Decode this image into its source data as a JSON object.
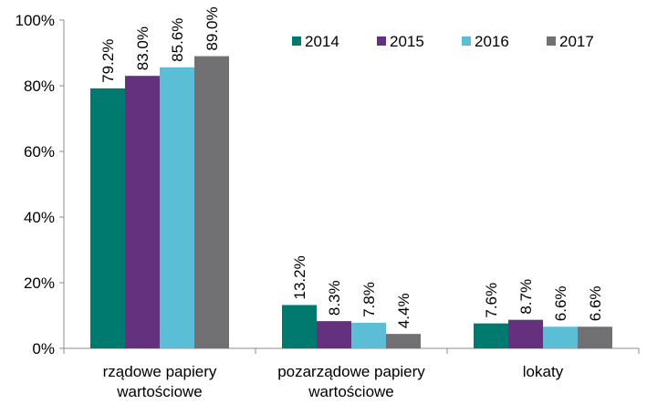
{
  "chart_data": {
    "type": "bar",
    "title": "",
    "xlabel": "",
    "ylabel": "",
    "ylim": [
      0,
      100
    ],
    "yticks": [
      "0%",
      "20%",
      "40%",
      "60%",
      "80%",
      "100%"
    ],
    "ytick_values": [
      0,
      20,
      40,
      60,
      80,
      100
    ],
    "categories": [
      [
        "rządowe papiery",
        "wartościowe"
      ],
      [
        "pozarządowe papiery",
        "wartościowe"
      ],
      [
        "lokaty"
      ]
    ],
    "series": [
      {
        "name": "2014",
        "color": "#007a6e",
        "values": [
          79.2,
          13.2,
          7.6
        ],
        "labels": [
          "79.2%",
          "13.2%",
          "7.6%"
        ]
      },
      {
        "name": "2015",
        "color": "#64317f",
        "values": [
          83.0,
          8.3,
          8.7
        ],
        "labels": [
          "83.0%",
          "8.3%",
          "8.7%"
        ]
      },
      {
        "name": "2016",
        "color": "#5bbdd6",
        "values": [
          85.6,
          7.8,
          6.6
        ],
        "labels": [
          "85.6%",
          "7.8%",
          "6.6%"
        ]
      },
      {
        "name": "2017",
        "color": "#717073",
        "values": [
          89.0,
          4.4,
          6.6
        ],
        "labels": [
          "89.0%",
          "4.4%",
          "6.6%"
        ]
      }
    ],
    "legend_position": "top-right",
    "grid": false
  }
}
